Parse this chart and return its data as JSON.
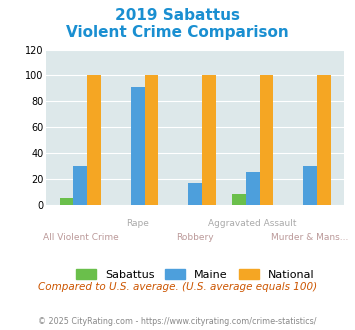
{
  "title_line1": "2019 Sabattus",
  "title_line2": "Violent Crime Comparison",
  "categories": [
    "All Violent Crime",
    "Rape",
    "Robbery",
    "Aggravated Assault",
    "Murder & Mans..."
  ],
  "sabattus": [
    5,
    0,
    0,
    8,
    0
  ],
  "maine": [
    30,
    91,
    17,
    25,
    30
  ],
  "national": [
    100,
    100,
    100,
    100,
    100
  ],
  "sabattus_color": "#6abf4b",
  "maine_color": "#4d9fdc",
  "national_color": "#f5a623",
  "ylim": [
    0,
    120
  ],
  "yticks": [
    0,
    20,
    40,
    60,
    80,
    100,
    120
  ],
  "bg_color": "#dde8ea",
  "title_color": "#1a8fd1",
  "top_label_color": "#aaaaaa",
  "bottom_label_color": "#bb9999",
  "footnote": "Compared to U.S. average. (U.S. average equals 100)",
  "credit": "© 2025 CityRating.com - https://www.cityrating.com/crime-statistics/",
  "footnote_color": "#cc5500",
  "credit_color": "#888888",
  "legend_labels": [
    "Sabattus",
    "Maine",
    "National"
  ]
}
